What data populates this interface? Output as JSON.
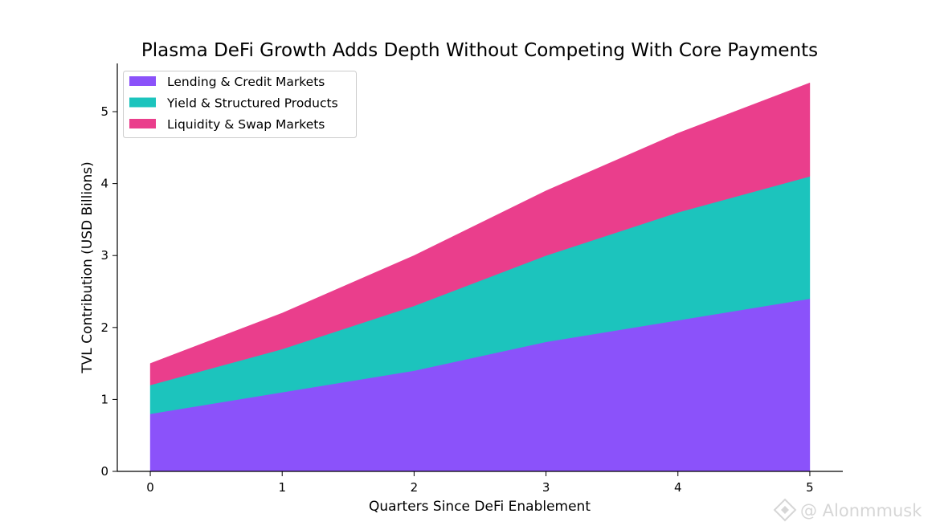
{
  "chart_data": {
    "type": "area",
    "stacked": true,
    "title": "Plasma DeFi Growth Adds Depth Without Competing With Core Payments",
    "xlabel": "Quarters Since DeFi Enablement",
    "ylabel": "TVL Contribution (USD Billions)",
    "x": [
      0,
      1,
      2,
      3,
      4,
      5
    ],
    "xlim": [
      -0.25,
      5.25
    ],
    "ylim": [
      0,
      5.67
    ],
    "xticks": [
      "0",
      "1",
      "2",
      "3",
      "4",
      "5"
    ],
    "yticks": [
      "0",
      "1",
      "2",
      "3",
      "4",
      "5"
    ],
    "grid": false,
    "legend_position": "upper-left",
    "series": [
      {
        "name": "Lending & Credit Markets",
        "values": [
          0.8,
          1.1,
          1.4,
          1.8,
          2.1,
          2.4
        ],
        "color": "#8b52fa"
      },
      {
        "name": "Yield & Structured Products",
        "values": [
          0.4,
          0.6,
          0.9,
          1.2,
          1.5,
          1.7
        ],
        "color": "#1cc4bd"
      },
      {
        "name": "Liquidity & Swap Markets",
        "values": [
          0.3,
          0.5,
          0.7,
          0.9,
          1.1,
          1.3
        ],
        "color": "#ea3e8c"
      }
    ]
  },
  "watermark": {
    "text": "@ Alonmmusk",
    "icon": "binance-diamond-icon"
  }
}
